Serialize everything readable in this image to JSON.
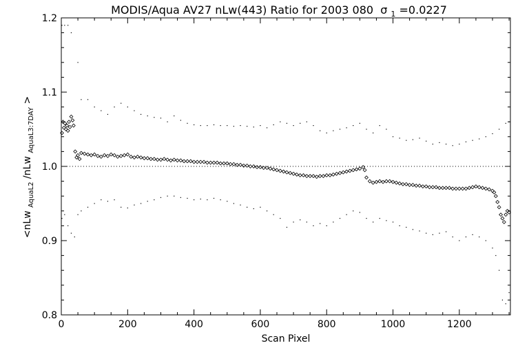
{
  "chart_data": {
    "type": "scatter",
    "title": "MODIS/Aqua AV27 nLw(443) Ratio for 2003 080",
    "title_sigma_label": "σ",
    "title_sigma_sub": "1",
    "title_sigma_value": "=0.0227",
    "xlabel": "Scan Pixel",
    "ylabel_parts": {
      "open": "<nLw",
      "sub1": "AquaL2",
      "mid": "/nLw",
      "sub2": "AquaL3:7DAY",
      "close": ">"
    },
    "xlim": [
      0,
      1354
    ],
    "ylim": [
      0.8,
      1.2
    ],
    "x_ticks": [
      0,
      200,
      400,
      600,
      800,
      1000,
      1200
    ],
    "x_tick_labels": [
      "0",
      "200",
      "400",
      "600",
      "800",
      "1000",
      "1200"
    ],
    "y_ticks": [
      0.8,
      0.9,
      1.0,
      1.1,
      1.2
    ],
    "y_tick_labels": [
      "0.8",
      "0.9",
      "1.0",
      "1.1",
      "1.2"
    ],
    "reference_line": 1.0,
    "grid": false,
    "series": [
      {
        "role": "mean",
        "marker": "diamond",
        "points": [
          [
            2,
            1.045
          ],
          [
            5,
            1.06
          ],
          [
            8,
            1.052
          ],
          [
            11,
            1.058
          ],
          [
            14,
            1.05
          ],
          [
            17,
            1.055
          ],
          [
            20,
            1.048
          ],
          [
            23,
            1.06
          ],
          [
            26,
            1.053
          ],
          [
            30,
            1.067
          ],
          [
            34,
            1.062
          ],
          [
            37,
            1.055
          ],
          [
            42,
            1.02
          ],
          [
            46,
            1.012
          ],
          [
            50,
            1.015
          ],
          [
            55,
            1.01
          ],
          [
            60,
            1.018
          ],
          [
            70,
            1.017
          ],
          [
            80,
            1.016
          ],
          [
            90,
            1.015
          ],
          [
            100,
            1.016
          ],
          [
            110,
            1.014
          ],
          [
            120,
            1.013
          ],
          [
            130,
            1.015
          ],
          [
            140,
            1.014
          ],
          [
            150,
            1.016
          ],
          [
            160,
            1.015
          ],
          [
            170,
            1.013
          ],
          [
            180,
            1.014
          ],
          [
            190,
            1.015
          ],
          [
            200,
            1.016
          ],
          [
            210,
            1.013
          ],
          [
            220,
            1.012
          ],
          [
            230,
            1.013
          ],
          [
            240,
            1.012
          ],
          [
            250,
            1.011
          ],
          [
            260,
            1.011
          ],
          [
            270,
            1.01
          ],
          [
            280,
            1.01
          ],
          [
            290,
            1.009
          ],
          [
            300,
            1.009
          ],
          [
            310,
            1.01
          ],
          [
            320,
            1.009
          ],
          [
            330,
            1.008
          ],
          [
            340,
            1.009
          ],
          [
            350,
            1.008
          ],
          [
            360,
            1.008
          ],
          [
            370,
            1.007
          ],
          [
            380,
            1.007
          ],
          [
            390,
            1.007
          ],
          [
            400,
            1.006
          ],
          [
            410,
            1.006
          ],
          [
            420,
            1.006
          ],
          [
            430,
            1.006
          ],
          [
            440,
            1.005
          ],
          [
            450,
            1.005
          ],
          [
            460,
            1.005
          ],
          [
            470,
            1.005
          ],
          [
            480,
            1.004
          ],
          [
            490,
            1.004
          ],
          [
            500,
            1.004
          ],
          [
            510,
            1.003
          ],
          [
            520,
            1.003
          ],
          [
            530,
            1.002
          ],
          [
            540,
            1.002
          ],
          [
            550,
            1.001
          ],
          [
            560,
            1.001
          ],
          [
            570,
            1.0
          ],
          [
            580,
            1.0
          ],
          [
            590,
            0.999
          ],
          [
            600,
            0.999
          ],
          [
            610,
            0.998
          ],
          [
            620,
            0.998
          ],
          [
            630,
            0.997
          ],
          [
            640,
            0.996
          ],
          [
            650,
            0.995
          ],
          [
            660,
            0.994
          ],
          [
            670,
            0.993
          ],
          [
            680,
            0.992
          ],
          [
            690,
            0.991
          ],
          [
            700,
            0.99
          ],
          [
            710,
            0.989
          ],
          [
            720,
            0.988
          ],
          [
            730,
            0.988
          ],
          [
            740,
            0.987
          ],
          [
            750,
            0.987
          ],
          [
            760,
            0.987
          ],
          [
            770,
            0.986
          ],
          [
            780,
            0.987
          ],
          [
            790,
            0.987
          ],
          [
            800,
            0.988
          ],
          [
            810,
            0.988
          ],
          [
            820,
            0.989
          ],
          [
            830,
            0.99
          ],
          [
            840,
            0.991
          ],
          [
            850,
            0.992
          ],
          [
            860,
            0.993
          ],
          [
            870,
            0.994
          ],
          [
            880,
            0.995
          ],
          [
            890,
            0.996
          ],
          [
            900,
            0.997
          ],
          [
            910,
            0.999
          ],
          [
            915,
            0.995
          ],
          [
            920,
            0.985
          ],
          [
            930,
            0.98
          ],
          [
            940,
            0.978
          ],
          [
            950,
            0.979
          ],
          [
            960,
            0.98
          ],
          [
            970,
            0.979
          ],
          [
            980,
            0.98
          ],
          [
            990,
            0.98
          ],
          [
            1000,
            0.979
          ],
          [
            1010,
            0.978
          ],
          [
            1020,
            0.977
          ],
          [
            1030,
            0.976
          ],
          [
            1040,
            0.976
          ],
          [
            1050,
            0.975
          ],
          [
            1060,
            0.975
          ],
          [
            1070,
            0.974
          ],
          [
            1080,
            0.974
          ],
          [
            1090,
            0.973
          ],
          [
            1100,
            0.973
          ],
          [
            1110,
            0.972
          ],
          [
            1120,
            0.972
          ],
          [
            1130,
            0.972
          ],
          [
            1140,
            0.971
          ],
          [
            1150,
            0.971
          ],
          [
            1160,
            0.971
          ],
          [
            1170,
            0.971
          ],
          [
            1180,
            0.97
          ],
          [
            1190,
            0.97
          ],
          [
            1200,
            0.97
          ],
          [
            1210,
            0.97
          ],
          [
            1220,
            0.97
          ],
          [
            1230,
            0.971
          ],
          [
            1240,
            0.972
          ],
          [
            1250,
            0.973
          ],
          [
            1260,
            0.972
          ],
          [
            1270,
            0.971
          ],
          [
            1280,
            0.97
          ],
          [
            1290,
            0.969
          ],
          [
            1300,
            0.967
          ],
          [
            1305,
            0.965
          ],
          [
            1310,
            0.96
          ],
          [
            1315,
            0.952
          ],
          [
            1320,
            0.945
          ],
          [
            1325,
            0.935
          ],
          [
            1330,
            0.93
          ],
          [
            1335,
            0.925
          ],
          [
            1340,
            0.935
          ],
          [
            1345,
            0.94
          ],
          [
            1350,
            0.938
          ]
        ]
      },
      {
        "role": "upper",
        "marker": "dot",
        "points": [
          [
            2,
            1.19
          ],
          [
            10,
            1.19
          ],
          [
            20,
            1.19
          ],
          [
            30,
            1.18
          ],
          [
            50,
            1.14
          ],
          [
            60,
            1.09
          ],
          [
            80,
            1.09
          ],
          [
            100,
            1.08
          ],
          [
            120,
            1.075
          ],
          [
            140,
            1.07
          ],
          [
            160,
            1.08
          ],
          [
            180,
            1.085
          ],
          [
            200,
            1.08
          ],
          [
            220,
            1.075
          ],
          [
            240,
            1.07
          ],
          [
            260,
            1.068
          ],
          [
            280,
            1.066
          ],
          [
            300,
            1.065
          ],
          [
            320,
            1.06
          ],
          [
            340,
            1.068
          ],
          [
            360,
            1.062
          ],
          [
            380,
            1.058
          ],
          [
            400,
            1.056
          ],
          [
            420,
            1.055
          ],
          [
            440,
            1.055
          ],
          [
            460,
            1.056
          ],
          [
            480,
            1.055
          ],
          [
            500,
            1.055
          ],
          [
            520,
            1.054
          ],
          [
            540,
            1.055
          ],
          [
            560,
            1.054
          ],
          [
            580,
            1.053
          ],
          [
            600,
            1.055
          ],
          [
            620,
            1.052
          ],
          [
            640,
            1.056
          ],
          [
            660,
            1.06
          ],
          [
            680,
            1.058
          ],
          [
            700,
            1.055
          ],
          [
            720,
            1.058
          ],
          [
            740,
            1.06
          ],
          [
            760,
            1.055
          ],
          [
            780,
            1.048
          ],
          [
            800,
            1.045
          ],
          [
            820,
            1.048
          ],
          [
            840,
            1.05
          ],
          [
            860,
            1.052
          ],
          [
            880,
            1.055
          ],
          [
            900,
            1.058
          ],
          [
            920,
            1.05
          ],
          [
            940,
            1.045
          ],
          [
            960,
            1.055
          ],
          [
            980,
            1.05
          ],
          [
            1000,
            1.04
          ],
          [
            1020,
            1.038
          ],
          [
            1040,
            1.035
          ],
          [
            1060,
            1.036
          ],
          [
            1080,
            1.038
          ],
          [
            1100,
            1.034
          ],
          [
            1120,
            1.03
          ],
          [
            1140,
            1.032
          ],
          [
            1160,
            1.03
          ],
          [
            1180,
            1.028
          ],
          [
            1200,
            1.03
          ],
          [
            1220,
            1.033
          ],
          [
            1240,
            1.035
          ],
          [
            1260,
            1.037
          ],
          [
            1280,
            1.04
          ],
          [
            1300,
            1.044
          ],
          [
            1320,
            1.05
          ],
          [
            1340,
            1.058
          ],
          [
            1350,
            1.06
          ]
        ]
      },
      {
        "role": "lower",
        "marker": "dot",
        "points": [
          [
            2,
            0.93
          ],
          [
            10,
            0.935
          ],
          [
            20,
            0.92
          ],
          [
            30,
            0.91
          ],
          [
            40,
            0.905
          ],
          [
            50,
            0.935
          ],
          [
            60,
            0.94
          ],
          [
            80,
            0.945
          ],
          [
            100,
            0.95
          ],
          [
            120,
            0.955
          ],
          [
            140,
            0.953
          ],
          [
            160,
            0.955
          ],
          [
            180,
            0.945
          ],
          [
            200,
            0.944
          ],
          [
            220,
            0.948
          ],
          [
            240,
            0.95
          ],
          [
            260,
            0.953
          ],
          [
            280,
            0.955
          ],
          [
            300,
            0.958
          ],
          [
            320,
            0.96
          ],
          [
            340,
            0.96
          ],
          [
            360,
            0.958
          ],
          [
            380,
            0.957
          ],
          [
            400,
            0.955
          ],
          [
            420,
            0.956
          ],
          [
            440,
            0.955
          ],
          [
            460,
            0.957
          ],
          [
            480,
            0.955
          ],
          [
            500,
            0.953
          ],
          [
            520,
            0.95
          ],
          [
            540,
            0.948
          ],
          [
            560,
            0.945
          ],
          [
            580,
            0.943
          ],
          [
            600,
            0.945
          ],
          [
            620,
            0.94
          ],
          [
            640,
            0.935
          ],
          [
            660,
            0.93
          ],
          [
            680,
            0.918
          ],
          [
            700,
            0.925
          ],
          [
            720,
            0.928
          ],
          [
            740,
            0.925
          ],
          [
            760,
            0.92
          ],
          [
            780,
            0.923
          ],
          [
            800,
            0.92
          ],
          [
            820,
            0.925
          ],
          [
            840,
            0.93
          ],
          [
            860,
            0.935
          ],
          [
            880,
            0.94
          ],
          [
            900,
            0.938
          ],
          [
            920,
            0.93
          ],
          [
            940,
            0.925
          ],
          [
            960,
            0.93
          ],
          [
            980,
            0.927
          ],
          [
            1000,
            0.925
          ],
          [
            1020,
            0.92
          ],
          [
            1040,
            0.918
          ],
          [
            1060,
            0.915
          ],
          [
            1080,
            0.913
          ],
          [
            1100,
            0.91
          ],
          [
            1120,
            0.908
          ],
          [
            1140,
            0.91
          ],
          [
            1160,
            0.912
          ],
          [
            1180,
            0.905
          ],
          [
            1200,
            0.9
          ],
          [
            1220,
            0.905
          ],
          [
            1240,
            0.908
          ],
          [
            1260,
            0.905
          ],
          [
            1280,
            0.9
          ],
          [
            1300,
            0.89
          ],
          [
            1310,
            0.88
          ],
          [
            1320,
            0.86
          ],
          [
            1330,
            0.82
          ],
          [
            1340,
            0.815
          ],
          [
            1350,
            0.83
          ]
        ]
      }
    ]
  }
}
